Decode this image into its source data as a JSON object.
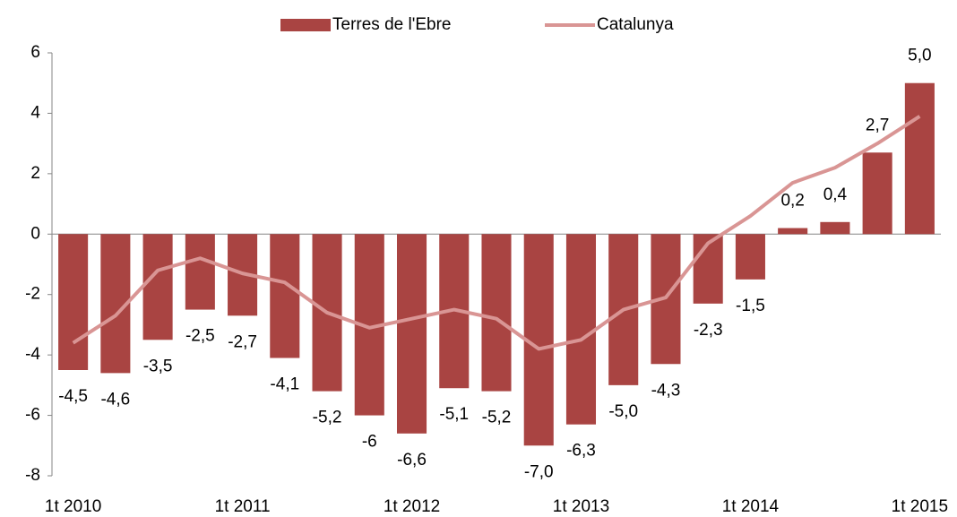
{
  "chart_data": {
    "type": "bar",
    "categories": [
      "1t 2010",
      null,
      null,
      null,
      "1t 2011",
      null,
      null,
      null,
      "1t 2012",
      null,
      null,
      null,
      "1t 2013",
      null,
      null,
      null,
      "1t 2014",
      null,
      null,
      null,
      "1t 2015"
    ],
    "series": [
      {
        "name": "Terres de l'Ebre",
        "type": "bar",
        "color": "#a94442",
        "values": [
          -4.5,
          -4.6,
          -3.5,
          -2.5,
          -2.7,
          -4.1,
          -5.2,
          -6,
          -6.6,
          -5.1,
          -5.2,
          -7.0,
          -6.3,
          -5.0,
          -4.3,
          -2.3,
          -1.5,
          0.2,
          0.4,
          2.7,
          5.0
        ],
        "value_labels": [
          "-4,5",
          "-4,6",
          "-3,5",
          "-2,5",
          "-2,7",
          "-4,1",
          "-5,2",
          "-6",
          "-6,6",
          "-5,1",
          "-5,2",
          "-7,0",
          "-6,3",
          "-5,0",
          "-4,3",
          "-2,3",
          "-1,5",
          "0,2",
          "0,4",
          "2,7",
          "5,0"
        ]
      },
      {
        "name": "Catalunya",
        "type": "line",
        "color": "#d99594",
        "values": [
          -3.6,
          -2.7,
          -1.2,
          -0.8,
          -1.3,
          -1.6,
          -2.6,
          -3.1,
          -2.8,
          -2.5,
          -2.8,
          -3.8,
          -3.5,
          -2.5,
          -2.1,
          -0.3,
          0.6,
          1.7,
          2.2,
          3.0,
          3.9
        ]
      }
    ],
    "ylim": [
      -8,
      6
    ],
    "yticks": [
      -8,
      -6,
      -4,
      -2,
      0,
      2,
      4,
      6
    ],
    "legend": "top"
  }
}
